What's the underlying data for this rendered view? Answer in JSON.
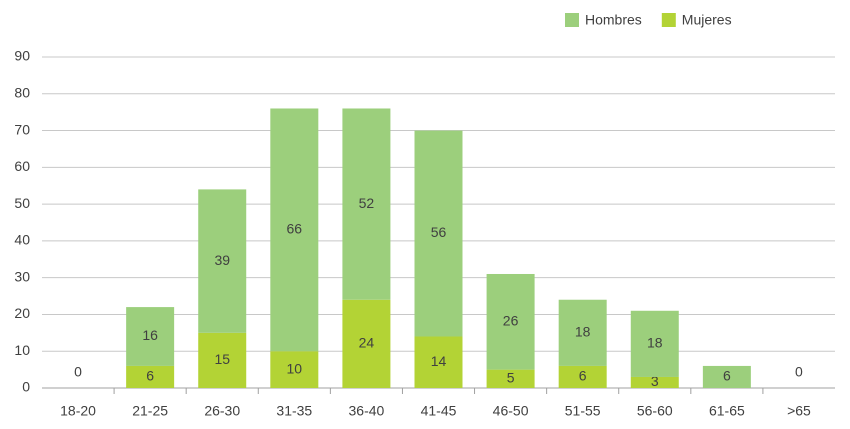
{
  "chart_data": {
    "type": "stacked_bar",
    "categories": [
      "18-20",
      "21-25",
      "26-30",
      "31-35",
      "36-40",
      "41-45",
      "46-50",
      "51-55",
      "56-60",
      "61-65",
      ">65"
    ],
    "series": [
      {
        "name": "Mujeres",
        "color": "#b3d335",
        "values": [
          null,
          6,
          15,
          10,
          24,
          14,
          5,
          6,
          3,
          null,
          null
        ]
      },
      {
        "name": "Hombres",
        "color": "#9ccf7c",
        "values": [
          0,
          16,
          39,
          66,
          52,
          56,
          26,
          18,
          18,
          6,
          0
        ]
      }
    ],
    "ylim": [
      0,
      90
    ],
    "yticks": [
      0,
      10,
      20,
      30,
      40,
      50,
      60,
      70,
      80,
      90
    ],
    "grid": true,
    "legend": "top-right"
  }
}
